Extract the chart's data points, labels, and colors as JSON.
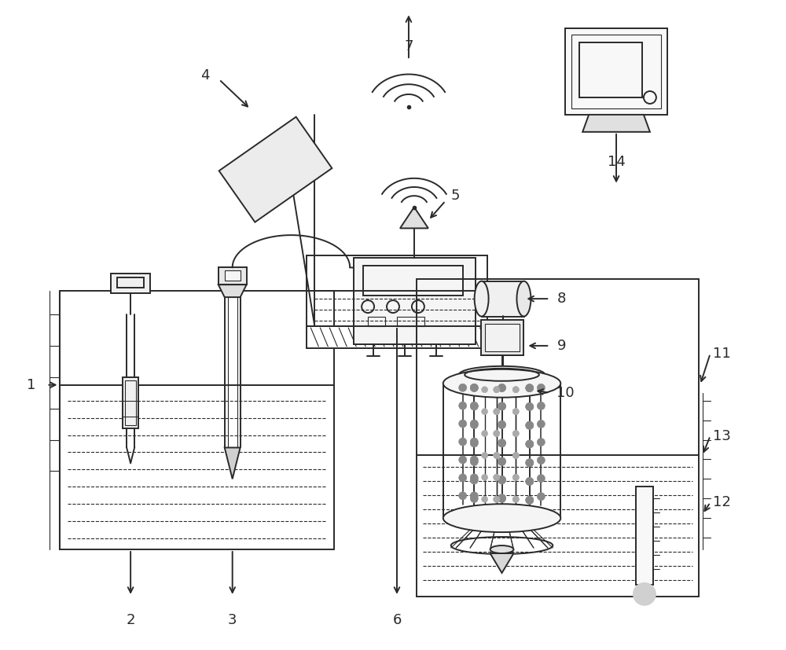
{
  "bg_color": "#ffffff",
  "lc": "#2a2a2a",
  "lw": 1.4,
  "lw_thin": 0.8,
  "figsize": [
    10.0,
    8.27
  ],
  "dpi": 100
}
